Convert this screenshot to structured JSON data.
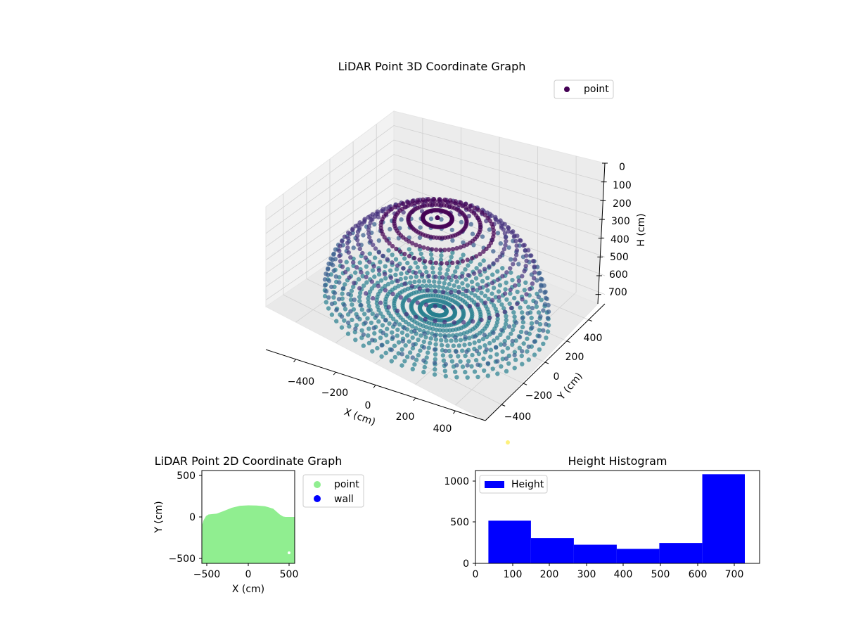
{
  "chart_data": [
    {
      "type": "scatter",
      "title": "LiDAR Point 3D Coordinate Graph",
      "xlabel": "X (cm)",
      "ylabel": "Y (cm)",
      "zlabel": "H (cm)",
      "x_ticks": [
        "−400",
        "−200",
        "0",
        "200",
        "400"
      ],
      "y_ticks": [
        "−400",
        "−200",
        "0",
        "200",
        "400"
      ],
      "z_ticks": [
        "0",
        "100",
        "200",
        "300",
        "400",
        "500",
        "600",
        "700"
      ],
      "xlim": [
        -550,
        550
      ],
      "ylim": [
        -550,
        550
      ],
      "zlim": [
        0,
        750
      ],
      "zaxis_inverted": true,
      "colormap": "viridis",
      "legend": [
        "point"
      ],
      "legend_loc": "upper right",
      "series": [
        {
          "name": "point",
          "shape": "hemispherical dome scan: points on radial rays from the centre floor up the walls to the top",
          "dome_radius": 500,
          "max_height": 735
        }
      ]
    },
    {
      "type": "scatter",
      "title": "LiDAR Point 2D Coordinate Graph",
      "xlabel": "X (cm)",
      "ylabel": "Y (cm)",
      "x_ticks": [
        "−500",
        "0",
        "500"
      ],
      "y_ticks": [
        "−500",
        "0",
        "500"
      ],
      "xlim": [
        -560,
        560
      ],
      "ylim": [
        -560,
        560
      ],
      "legend": [
        "point",
        "wall"
      ],
      "legend_loc": "outside right",
      "series": [
        {
          "name": "point",
          "color": "#90ee90",
          "region_outline": [
            [
              -555,
              -560
            ],
            [
              -555,
              -90
            ],
            [
              -540,
              -40
            ],
            [
              -510,
              10
            ],
            [
              -480,
              30
            ],
            [
              -380,
              40
            ],
            [
              -300,
              70
            ],
            [
              -200,
              110
            ],
            [
              -100,
              135
            ],
            [
              0,
              140
            ],
            [
              100,
              138
            ],
            [
              200,
              130
            ],
            [
              300,
              100
            ],
            [
              380,
              30
            ],
            [
              420,
              5
            ],
            [
              450,
              0
            ],
            [
              560,
              0
            ],
            [
              560,
              -560
            ]
          ]
        },
        {
          "name": "wall",
          "color": "#0000ff",
          "values": []
        }
      ]
    },
    {
      "type": "bar",
      "title": "Height Histogram",
      "legend": [
        "Height"
      ],
      "legend_loc": "upper left",
      "bar_color": "#0000ff",
      "x_ticks": [
        "0",
        "100",
        "200",
        "300",
        "400",
        "500",
        "600",
        "700"
      ],
      "y_ticks": [
        "0",
        "500",
        "1000"
      ],
      "xlim": [
        0,
        768
      ],
      "ylim": [
        0,
        1120
      ],
      "bins": [
        {
          "from": 35,
          "to": 150,
          "count": 515
        },
        {
          "from": 150,
          "to": 266,
          "count": 305
        },
        {
          "from": 266,
          "to": 382,
          "count": 225
        },
        {
          "from": 382,
          "to": 497,
          "count": 175
        },
        {
          "from": 497,
          "to": 613,
          "count": 245
        },
        {
          "from": 613,
          "to": 728,
          "count": 1075
        }
      ]
    }
  ]
}
